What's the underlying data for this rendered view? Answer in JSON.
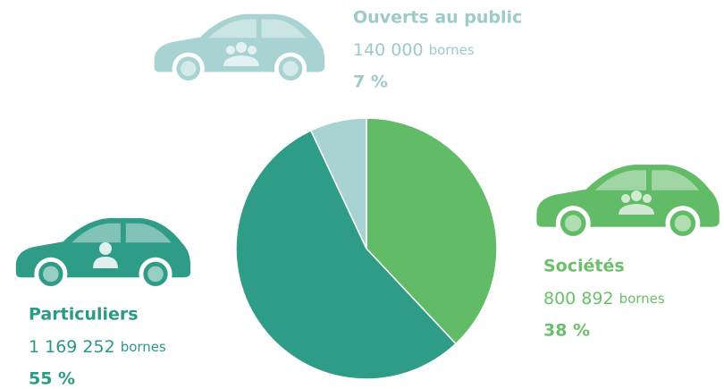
{
  "chart_data": {
    "type": "pie",
    "categories": [
      "Sociétés",
      "Particuliers",
      "Ouverts au public"
    ],
    "values": [
      38,
      55,
      7
    ],
    "value_labels": [
      "38 %",
      "55 %",
      "7 %"
    ],
    "counts": [
      800892,
      1169252,
      140000
    ],
    "count_labels": [
      "800 892",
      "1 169 252",
      "140 000"
    ],
    "count_unit": "bornes",
    "colors": [
      "#62bb66",
      "#2e9c86",
      "#a9d2d3"
    ]
  }
}
